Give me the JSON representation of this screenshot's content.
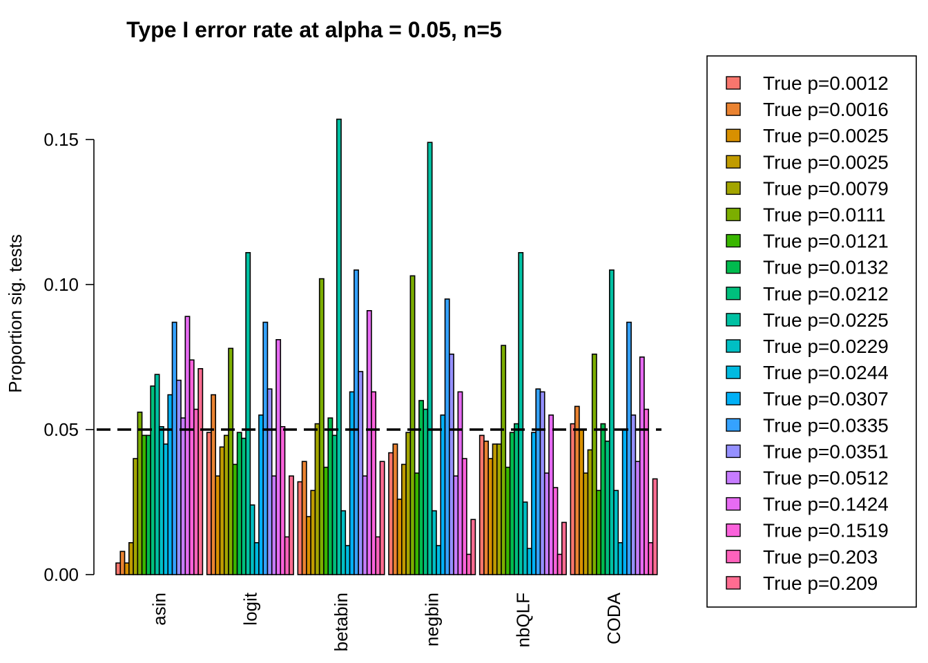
{
  "chart_data": {
    "type": "bar",
    "title": "Type I error rate at alpha = 0.05, n=5",
    "xlabel": "",
    "ylabel": "Proportion sig. tests",
    "ylim": [
      0,
      0.17
    ],
    "yticks": [
      0.0,
      0.05,
      0.1,
      0.15
    ],
    "ytick_labels": [
      "0.00",
      "0.05",
      "0.10",
      "0.15"
    ],
    "reference_line": {
      "value": 0.05,
      "style": "dashed"
    },
    "legend_position": "right",
    "categories": [
      "asin",
      "logit",
      "betabin",
      "negbin",
      "nbQLF",
      "CODA"
    ],
    "series": [
      {
        "name": "True p=0.0012",
        "color": "#F8766D",
        "values": [
          0.004,
          0.049,
          0.032,
          0.042,
          0.048,
          0.052
        ]
      },
      {
        "name": "True p=0.0016",
        "color": "#EA8331",
        "values": [
          0.008,
          0.062,
          0.039,
          0.045,
          0.046,
          0.058
        ]
      },
      {
        "name": "True p=0.0025",
        "color": "#D89000",
        "values": [
          0.004,
          0.034,
          0.02,
          0.026,
          0.04,
          0.05
        ]
      },
      {
        "name": "True p=0.0025",
        "color": "#C09B00",
        "values": [
          0.011,
          0.044,
          0.029,
          0.038,
          0.045,
          0.035
        ]
      },
      {
        "name": "True p=0.0079",
        "color": "#A3A500",
        "values": [
          0.04,
          0.048,
          0.052,
          0.049,
          0.045,
          0.043
        ]
      },
      {
        "name": "True p=0.0111",
        "color": "#7CAE00",
        "values": [
          0.056,
          0.078,
          0.102,
          0.103,
          0.079,
          0.076
        ]
      },
      {
        "name": "True p=0.0121",
        "color": "#39B600",
        "values": [
          0.048,
          0.038,
          0.037,
          0.035,
          0.037,
          0.029
        ]
      },
      {
        "name": "True p=0.0132",
        "color": "#00BB4E",
        "values": [
          0.048,
          0.049,
          0.054,
          0.06,
          0.049,
          0.052
        ]
      },
      {
        "name": "True p=0.0212",
        "color": "#00BF7D",
        "values": [
          0.065,
          0.047,
          0.048,
          0.057,
          0.052,
          0.046
        ]
      },
      {
        "name": "True p=0.0225",
        "color": "#00C1A3",
        "values": [
          0.069,
          0.111,
          0.157,
          0.149,
          0.111,
          0.105
        ]
      },
      {
        "name": "True p=0.0229",
        "color": "#00BFC4",
        "values": [
          0.051,
          0.024,
          0.022,
          0.022,
          0.025,
          0.029
        ]
      },
      {
        "name": "True p=0.0244",
        "color": "#00BAE0",
        "values": [
          0.045,
          0.011,
          0.01,
          0.01,
          0.009,
          0.011
        ]
      },
      {
        "name": "True p=0.0307",
        "color": "#00B0F6",
        "values": [
          0.062,
          0.055,
          0.063,
          0.055,
          0.049,
          0.05
        ]
      },
      {
        "name": "True p=0.0335",
        "color": "#35A2FF",
        "values": [
          0.087,
          0.087,
          0.105,
          0.095,
          0.064,
          0.087
        ]
      },
      {
        "name": "True p=0.0351",
        "color": "#9590FF",
        "values": [
          0.067,
          0.064,
          0.07,
          0.076,
          0.063,
          0.055
        ]
      },
      {
        "name": "True p=0.0512",
        "color": "#C77CFF",
        "values": [
          0.054,
          0.034,
          0.034,
          0.034,
          0.035,
          0.039
        ]
      },
      {
        "name": "True p=0.1424",
        "color": "#E76BF3",
        "values": [
          0.089,
          0.081,
          0.091,
          0.063,
          0.055,
          0.075
        ]
      },
      {
        "name": "True p=0.1519",
        "color": "#FA62DB",
        "values": [
          0.074,
          0.051,
          0.063,
          0.04,
          0.03,
          0.057
        ]
      },
      {
        "name": "True p=0.203",
        "color": "#FF62BC",
        "values": [
          0.057,
          0.013,
          0.013,
          0.007,
          0.007,
          0.011
        ]
      },
      {
        "name": "True p=0.209",
        "color": "#FF6C91",
        "values": [
          0.071,
          0.034,
          0.039,
          0.019,
          0.018,
          0.033
        ]
      }
    ]
  }
}
